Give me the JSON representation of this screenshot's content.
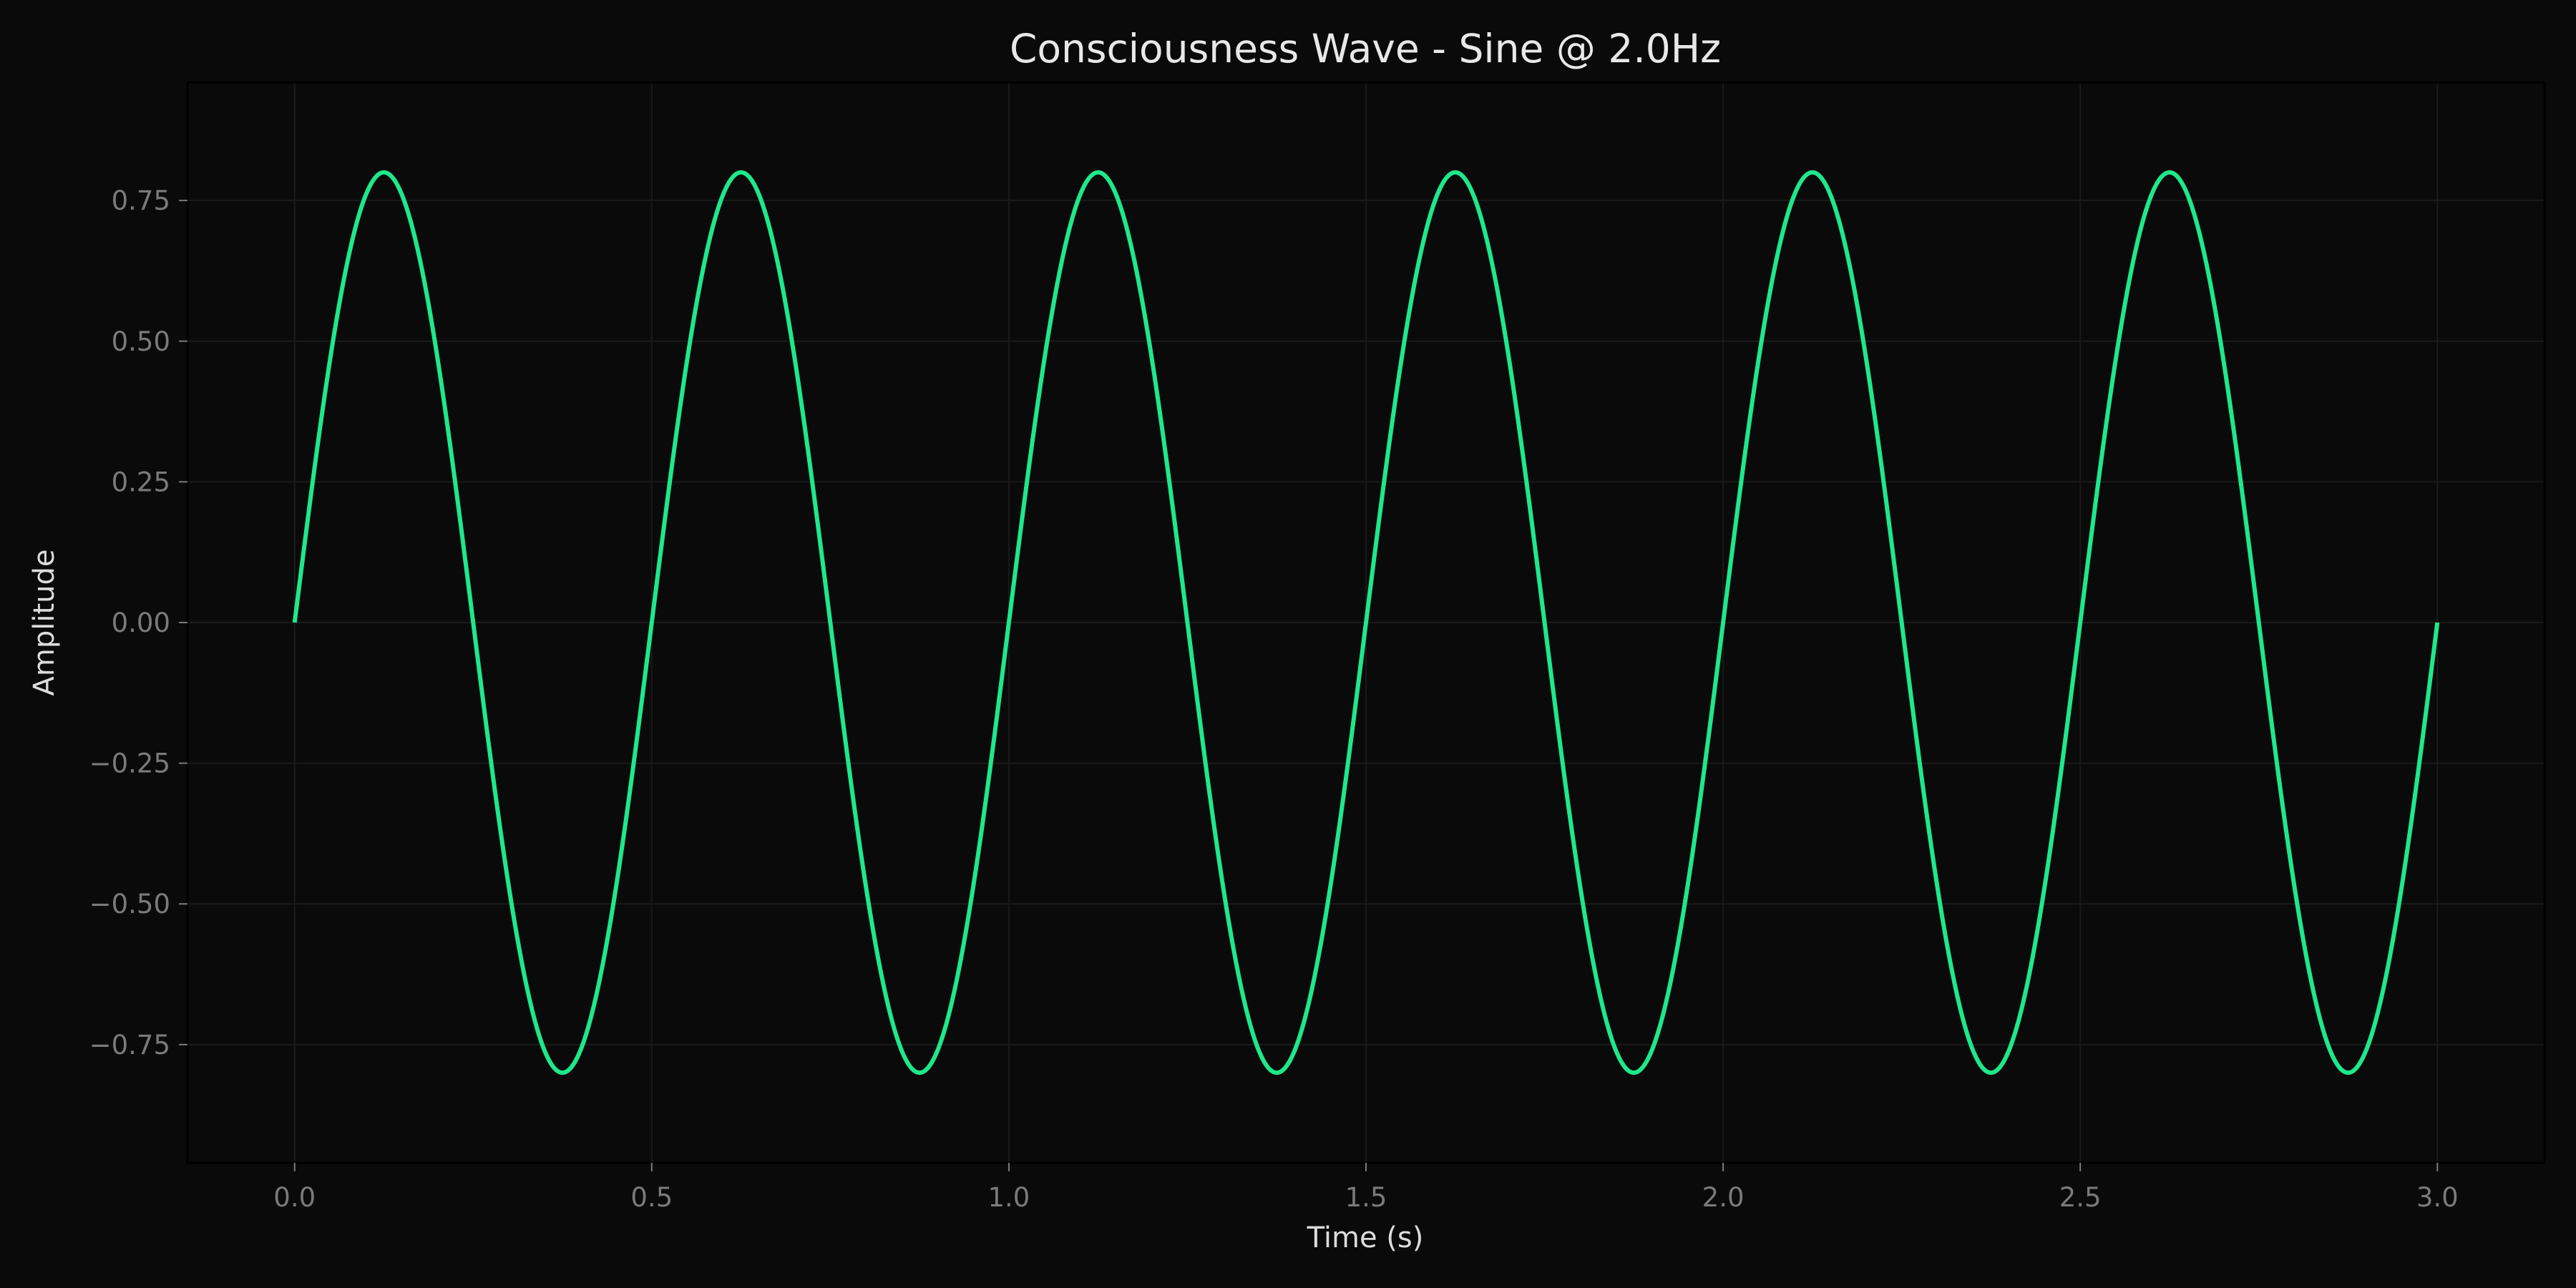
{
  "chart_data": {
    "type": "line",
    "title": "Consciousness Wave - Sine @ 2.0Hz",
    "xlabel": "Time (s)",
    "ylabel": "Amplitude",
    "xlim": [
      -0.15,
      3.15
    ],
    "ylim": [
      -0.96,
      0.96
    ],
    "xticks": [
      0.0,
      0.5,
      1.0,
      1.5,
      2.0,
      2.5,
      3.0
    ],
    "xtick_labels": [
      "0.0",
      "0.5",
      "1.0",
      "1.5",
      "2.0",
      "2.5",
      "3.0"
    ],
    "yticks": [
      -0.75,
      -0.5,
      -0.25,
      0.0,
      0.25,
      0.5,
      0.75
    ],
    "ytick_labels": [
      "−0.75",
      "−0.50",
      "−0.25",
      "0.00",
      "0.25",
      "0.50",
      "0.75"
    ],
    "grid": true,
    "series": [
      {
        "function": "sine",
        "amplitude": 0.8,
        "frequency_hz": 2.0,
        "x_range": [
          0.0,
          3.0
        ],
        "color": "#1ee88a"
      }
    ]
  },
  "colors": {
    "background": "#0a0a0a",
    "grid": "#1a1a1a",
    "axes": "#000000",
    "tick_text": "#7a7a7a",
    "label_text": "#dcdcdc"
  }
}
